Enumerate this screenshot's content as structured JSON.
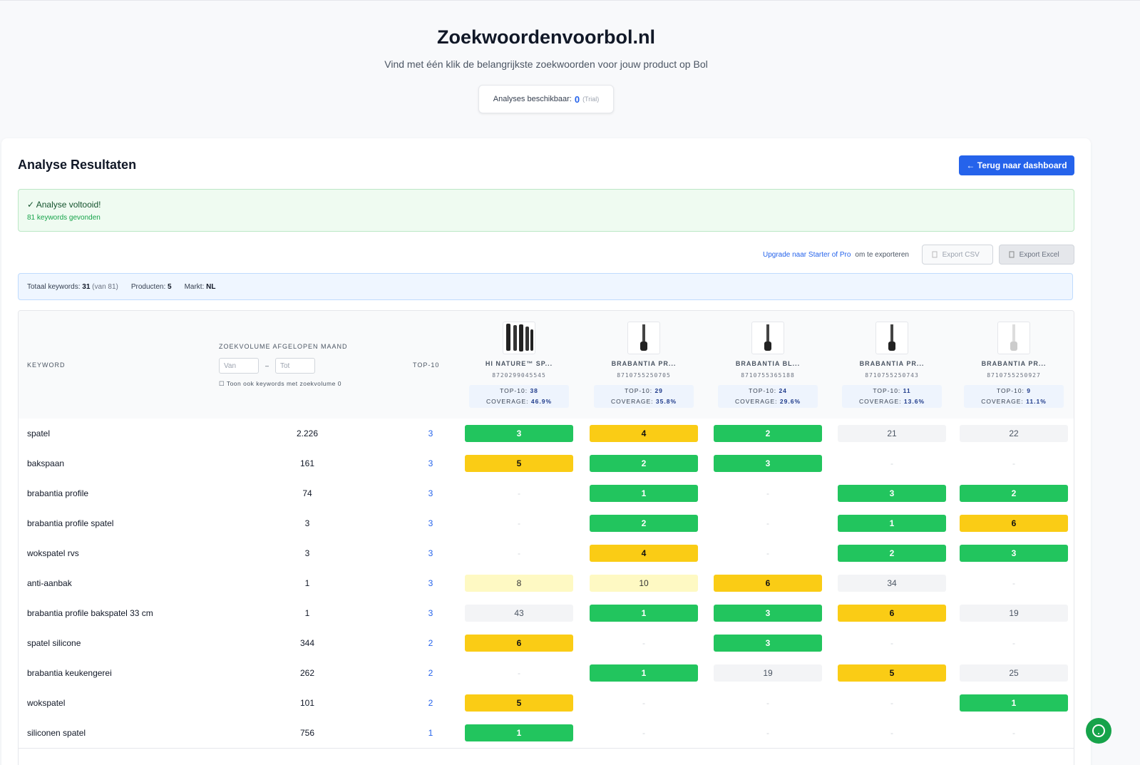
{
  "header": {
    "title": "Zoekwoordenvoorbol.nl",
    "subtitle": "Vind met één klik de belangrijkste zoekwoorden voor jouw product op Bol",
    "badge": {
      "label": "Analyses beschikbaar:",
      "count": "0",
      "note": "(Trial)"
    }
  },
  "results": {
    "title": "Analyse Resultaten",
    "back_button": "← Terug naar dashboard",
    "success": {
      "title": "✓ Analyse voltooid!",
      "detail": "81 keywords gevonden"
    },
    "export": {
      "upgrade_link": "Upgrade naar Starter of Pro",
      "upgrade_text": "om te exporteren",
      "csv": "Export CSV",
      "excel": "Export Excel"
    },
    "stats": [
      {
        "label": "Totaal keywords:",
        "value": "31",
        "extra": "(van 81)"
      },
      {
        "label": "Producten:",
        "value": "5"
      },
      {
        "label": "Markt:",
        "value": "NL"
      }
    ]
  },
  "table": {
    "columns": {
      "keyword": "KEYWORD",
      "volume": "ZOEKVOLUME AFGELOPEN MAAND",
      "top10": "TOP-10"
    },
    "volume_filter": {
      "from": "Van",
      "dash": "–",
      "to": "Tot",
      "checkbox": "Toon ook keywords met zoekvolume 0"
    },
    "product_labels": {
      "top10": "TOP-10:",
      "coverage": "COVERAGE:"
    },
    "products": [
      {
        "name": "HI NATURE™ SP...",
        "ean": "8720299045545",
        "top10": "38",
        "coverage": "46.9%"
      },
      {
        "name": "BRABANTIA PR...",
        "ean": "8710755250705",
        "top10": "29",
        "coverage": "35.8%"
      },
      {
        "name": "BRABANTIA BL...",
        "ean": "8710755365188",
        "top10": "24",
        "coverage": "29.6%"
      },
      {
        "name": "BRABANTIA PR...",
        "ean": "8710755250743",
        "top10": "11",
        "coverage": "13.6%"
      },
      {
        "name": "BRABANTIA PR...",
        "ean": "8710755250927",
        "top10": "9",
        "coverage": "11.1%"
      }
    ],
    "rows": [
      [
        "spatel",
        "2.226",
        "3",
        "3",
        "4",
        "2",
        "21",
        "22"
      ],
      [
        "bakspaan",
        "161",
        "3",
        "5",
        "2",
        "3",
        "-",
        "-"
      ],
      [
        "brabantia profile",
        "74",
        "3",
        "-",
        "1",
        "-",
        "3",
        "2"
      ],
      [
        "brabantia profile spatel",
        "3",
        "3",
        "-",
        "2",
        "-",
        "1",
        "6"
      ],
      [
        "wokspatel rvs",
        "3",
        "3",
        "-",
        "4",
        "-",
        "2",
        "3"
      ],
      [
        "anti-aanbak",
        "1",
        "3",
        "8",
        "10",
        "6",
        "34",
        "-"
      ],
      [
        "brabantia profile bakspatel 33 cm",
        "1",
        "3",
        "43",
        "1",
        "3",
        "6",
        "19"
      ],
      [
        "spatel silicone",
        "344",
        "2",
        "6",
        "-",
        "3",
        "-",
        "-"
      ],
      [
        "brabantia keukengerei",
        "262",
        "2",
        "-",
        "1",
        "19",
        "5",
        "25"
      ],
      [
        "wokspatel",
        "101",
        "2",
        "5",
        "-",
        "-",
        "-",
        "1"
      ],
      [
        "siliconen spatel",
        "756",
        "1",
        "1",
        "-",
        "-",
        "-",
        "-"
      ]
    ]
  }
}
